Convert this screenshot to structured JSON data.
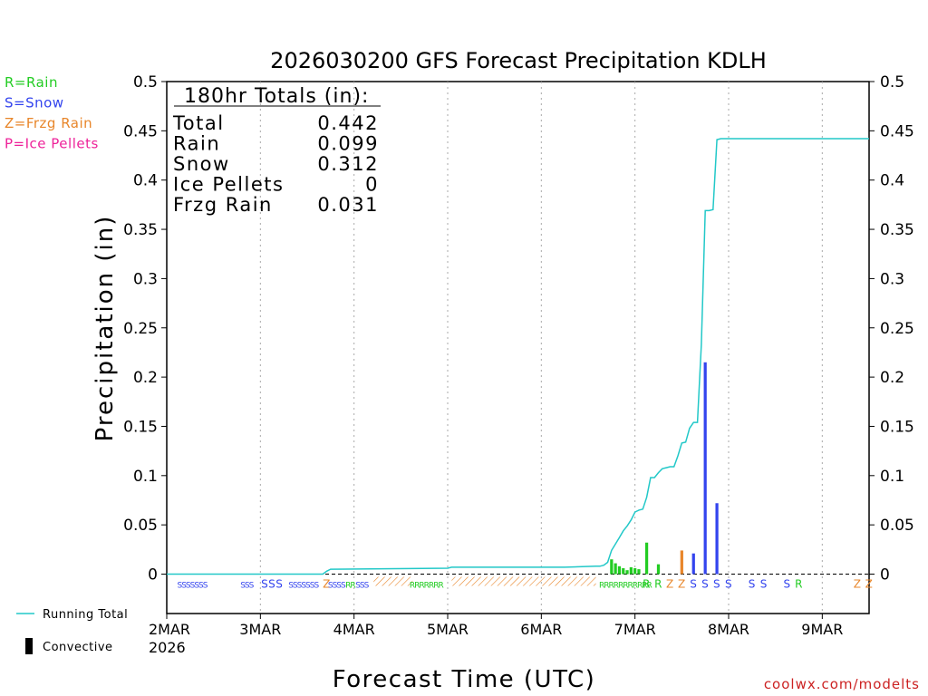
{
  "chart_data": {
    "type": "bar",
    "title": "2026030200 GFS Forecast Precipitation KDLH",
    "ylabel": "Precipitation (in)",
    "xlabel": "Forecast Time (UTC)",
    "ylim": [
      -0.04,
      0.5
    ],
    "xlim_hours": [
      0,
      180
    ],
    "yticks": [
      "0.5",
      "0.45",
      "0.4",
      "0.35",
      "0.3",
      "0.25",
      "0.2",
      "0.15",
      "0.1",
      "0.05",
      "0"
    ],
    "ytick_values": [
      0.5,
      0.45,
      0.4,
      0.35,
      0.3,
      0.25,
      0.2,
      0.15,
      0.1,
      0.05,
      0
    ],
    "xticks": [
      {
        "label": "2MAR",
        "hour": 0
      },
      {
        "label": "3MAR",
        "hour": 24
      },
      {
        "label": "4MAR",
        "hour": 48
      },
      {
        "label": "5MAR",
        "hour": 72
      },
      {
        "label": "6MAR",
        "hour": 96
      },
      {
        "label": "7MAR",
        "hour": 120
      },
      {
        "label": "8MAR",
        "hour": 144
      },
      {
        "label": "9MAR",
        "hour": 168
      }
    ],
    "year_label": "2026",
    "legend_types": [
      {
        "label": "R=Rain",
        "color": "#22cc22"
      },
      {
        "label": "S=Snow",
        "color": "#3344ee"
      },
      {
        "label": "Z=Frzg Rain",
        "color": "#e8862a"
      },
      {
        "label": "P=Ice Pellets",
        "color": "#ee2299"
      }
    ],
    "legend_lines": [
      {
        "label": "Running Total",
        "color": "#22c8c8"
      },
      {
        "label": "Convective",
        "color": "#000000"
      }
    ],
    "totals": {
      "header": "180hr Totals (in):",
      "rows": [
        {
          "label": "Total",
          "value": "0.442"
        },
        {
          "label": "Rain",
          "value": "0.099"
        },
        {
          "label": "Snow",
          "value": "0.312"
        },
        {
          "label": "Ice Pellets",
          "value": "0"
        },
        {
          "label": "Frzg Rain",
          "value": "0.031"
        }
      ]
    },
    "bars": [
      {
        "hour": 114,
        "value": 0.015,
        "type": "rain"
      },
      {
        "hour": 115,
        "value": 0.011,
        "type": "rain"
      },
      {
        "hour": 116,
        "value": 0.008,
        "type": "rain"
      },
      {
        "hour": 117,
        "value": 0.006,
        "type": "rain"
      },
      {
        "hour": 118,
        "value": 0.004,
        "type": "rain"
      },
      {
        "hour": 119,
        "value": 0.007,
        "type": "rain"
      },
      {
        "hour": 120,
        "value": 0.006,
        "type": "rain"
      },
      {
        "hour": 121,
        "value": 0.005,
        "type": "rain"
      },
      {
        "hour": 123,
        "value": 0.032,
        "type": "rain"
      },
      {
        "hour": 126,
        "value": 0.01,
        "type": "rain"
      },
      {
        "hour": 132,
        "value": 0.024,
        "type": "frzg"
      },
      {
        "hour": 135,
        "value": 0.021,
        "type": "snow"
      },
      {
        "hour": 138,
        "value": 0.215,
        "type": "snow"
      },
      {
        "hour": 141,
        "value": 0.072,
        "type": "snow"
      }
    ],
    "running_total": {
      "hours": [
        0,
        40,
        41,
        42,
        72,
        73,
        100,
        102,
        110,
        111,
        112,
        113,
        114,
        116,
        117,
        118,
        119,
        120,
        121,
        122,
        123,
        124,
        125,
        126,
        127,
        128,
        129,
        130,
        131,
        132,
        133,
        134,
        135,
        136,
        137,
        138,
        139,
        140,
        141,
        142,
        180
      ],
      "values": [
        0,
        0,
        0.003,
        0.005,
        0.006,
        0.007,
        0.007,
        0.007,
        0.008,
        0.008,
        0.009,
        0.012,
        0.024,
        0.037,
        0.044,
        0.049,
        0.055,
        0.063,
        0.065,
        0.066,
        0.078,
        0.098,
        0.098,
        0.103,
        0.107,
        0.108,
        0.109,
        0.109,
        0.12,
        0.133,
        0.134,
        0.148,
        0.154,
        0.154,
        0.233,
        0.369,
        0.369,
        0.37,
        0.441,
        0.442,
        0.442
      ]
    },
    "ptype_strip": [
      {
        "text": "SSSSSSS",
        "hour": 6.5,
        "type": "snow",
        "size": 9
      },
      {
        "text": "SSS",
        "hour": 20.5,
        "type": "snow",
        "size": 9
      },
      {
        "text": "SSS",
        "hour": 27,
        "type": "snow",
        "size": 12
      },
      {
        "text": "SSSSSSS",
        "hour": 35,
        "type": "snow",
        "size": 9
      },
      {
        "text": "Z",
        "hour": 41,
        "type": "frzg",
        "size": 12
      },
      {
        "text": "SSSS",
        "hour": 43.5,
        "type": "snow",
        "size": 9
      },
      {
        "text": "RR",
        "hour": 47,
        "type": "rain",
        "size": 9
      },
      {
        "text": "SSS",
        "hour": 50,
        "type": "snow",
        "size": 9
      },
      {
        "text": "RRRRRRR",
        "hour": 66.5,
        "type": "rain",
        "size": 9
      },
      {
        "text": "RRRRRRRRRRR",
        "hour": 117.5,
        "type": "rain",
        "size": 9
      },
      {
        "text": "R",
        "hour": 123,
        "type": "rain",
        "size": 12
      },
      {
        "text": "R",
        "hour": 126,
        "type": "rain",
        "size": 12
      },
      {
        "text": "Z",
        "hour": 129,
        "type": "frzg",
        "size": 12
      },
      {
        "text": "Z",
        "hour": 132,
        "type": "frzg",
        "size": 12
      },
      {
        "text": "S",
        "hour": 135,
        "type": "snow",
        "size": 12
      },
      {
        "text": "S",
        "hour": 138,
        "type": "snow",
        "size": 12
      },
      {
        "text": "S",
        "hour": 141,
        "type": "snow",
        "size": 12
      },
      {
        "text": "S",
        "hour": 144,
        "type": "snow",
        "size": 12
      },
      {
        "text": "S",
        "hour": 150,
        "type": "snow",
        "size": 12
      },
      {
        "text": "S",
        "hour": 153,
        "type": "snow",
        "size": 12
      },
      {
        "text": "S",
        "hour": 159,
        "type": "snow",
        "size": 12
      },
      {
        "text": "R",
        "hour": 162,
        "type": "rain",
        "size": 12
      },
      {
        "text": "Z",
        "hour": 177,
        "type": "frzg",
        "size": 12
      },
      {
        "text": "Z",
        "hour": 180,
        "type": "frzg",
        "size": 12
      }
    ],
    "hatched_frzg_ranges": [
      [
        53,
        63
      ],
      [
        73,
        110
      ]
    ],
    "colors": {
      "rain": "#22cc22",
      "snow": "#3344ee",
      "frzg": "#e8862a",
      "ice": "#ee2299",
      "running_total": "#22c8c8",
      "grid": "#aaaaaa"
    }
  },
  "footer": {
    "credit": "coolwx.com/modelts"
  }
}
